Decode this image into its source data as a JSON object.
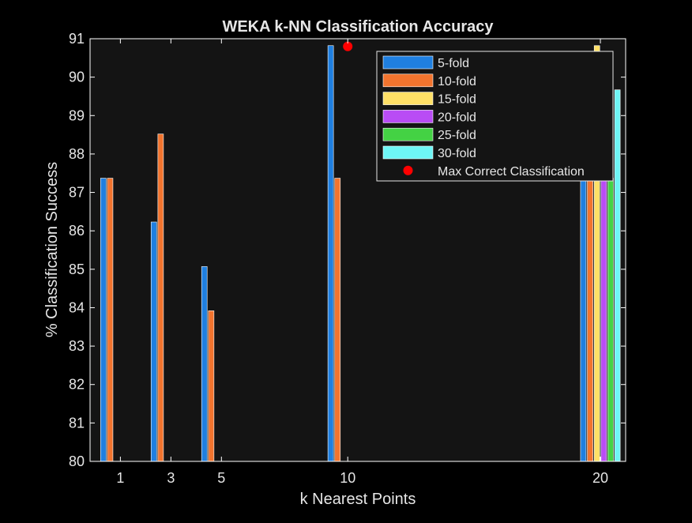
{
  "chart_data": {
    "type": "bar",
    "title": "WEKA k-NN Classification Accuracy",
    "xlabel": "k Nearest Points",
    "ylabel": "% Classification Success",
    "ylim": [
      80,
      91
    ],
    "yticks": [
      80,
      81,
      82,
      83,
      84,
      85,
      86,
      87,
      88,
      89,
      90,
      91
    ],
    "xticks": [
      1,
      3,
      5,
      10,
      20
    ],
    "grid": false,
    "legend_position": "top-right",
    "background": "#141414",
    "text_color": "#e6e6e6",
    "axis_color": "#ffffff",
    "series": [
      {
        "name": "5-fold",
        "color": "#1f7fe0",
        "values": [
          87.37,
          86.23,
          85.07,
          90.82,
          87.37
        ]
      },
      {
        "name": "10-fold",
        "color": "#f2742e",
        "values": [
          87.37,
          88.52,
          83.92,
          87.37,
          87.37
        ]
      },
      {
        "name": "15-fold",
        "color": "#ffe066",
        "values": [
          null,
          null,
          null,
          null,
          90.82
        ]
      },
      {
        "name": "20-fold",
        "color": "#b94cf5",
        "values": [
          null,
          null,
          null,
          null,
          87.37
        ]
      },
      {
        "name": "25-fold",
        "color": "#44d244",
        "values": [
          null,
          null,
          null,
          null,
          87.37
        ]
      },
      {
        "name": "30-fold",
        "color": "#6ef6f6",
        "values": [
          null,
          null,
          null,
          null,
          89.67
        ]
      }
    ],
    "marker": {
      "name": "Max Correct Classification",
      "color": "#ff0000",
      "x": 10,
      "y": 90.8
    }
  }
}
